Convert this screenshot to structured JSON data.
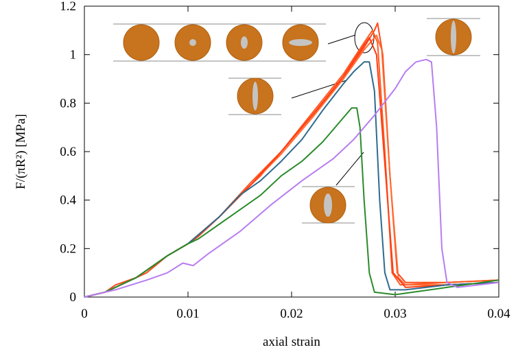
{
  "chart_data": {
    "type": "line",
    "xlabel": "axial strain",
    "ylabel": "F/(πR²) [MPa]",
    "xlim": [
      0,
      0.04
    ],
    "ylim": [
      0,
      1.2
    ],
    "xticks": [
      0,
      0.01,
      0.02,
      0.03,
      0.04
    ],
    "yticks": [
      0,
      0.2,
      0.4,
      0.6,
      0.8,
      1,
      1.2
    ],
    "series": [
      {
        "color": "#ff4a1a",
        "x": [
          0,
          0.002,
          0.003,
          0.005,
          0.006,
          0.008,
          0.01,
          0.011,
          0.013,
          0.015,
          0.017,
          0.019,
          0.021,
          0.023,
          0.025,
          0.026,
          0.027,
          0.028,
          0.0283,
          0.0288,
          0.0295,
          0.0302,
          0.031,
          0.035,
          0.04
        ],
        "values": [
          0,
          0.02,
          0.05,
          0.08,
          0.1,
          0.17,
          0.22,
          0.25,
          0.33,
          0.42,
          0.5,
          0.6,
          0.7,
          0.8,
          0.9,
          0.97,
          1.03,
          1.1,
          1.13,
          1.0,
          0.5,
          0.1,
          0.06,
          0.06,
          0.07
        ]
      },
      {
        "color": "#ff5a20",
        "x": [
          0,
          0.002,
          0.005,
          0.008,
          0.01,
          0.013,
          0.016,
          0.019,
          0.022,
          0.025,
          0.027,
          0.0278,
          0.0283,
          0.029,
          0.0297,
          0.0305,
          0.035,
          0.04
        ],
        "values": [
          0,
          0.02,
          0.08,
          0.17,
          0.22,
          0.33,
          0.47,
          0.6,
          0.76,
          0.92,
          1.05,
          1.1,
          1.05,
          0.6,
          0.1,
          0.05,
          0.06,
          0.07
        ]
      },
      {
        "color": "#ff6a30",
        "x": [
          0,
          0.002,
          0.005,
          0.008,
          0.01,
          0.013,
          0.016,
          0.019,
          0.022,
          0.025,
          0.027,
          0.0282,
          0.0287,
          0.0295,
          0.0303,
          0.031,
          0.035,
          0.04
        ],
        "values": [
          0,
          0.02,
          0.08,
          0.17,
          0.22,
          0.33,
          0.46,
          0.59,
          0.74,
          0.9,
          1.02,
          1.08,
          1.02,
          0.5,
          0.08,
          0.05,
          0.05,
          0.06
        ]
      },
      {
        "color": "#ff3c14",
        "x": [
          0,
          0.002,
          0.005,
          0.008,
          0.01,
          0.013,
          0.016,
          0.019,
          0.022,
          0.025,
          0.027,
          0.0275,
          0.0282,
          0.029,
          0.0298,
          0.031,
          0.035,
          0.04
        ],
        "values": [
          0,
          0.02,
          0.08,
          0.17,
          0.22,
          0.33,
          0.46,
          0.6,
          0.75,
          0.91,
          1.04,
          1.07,
          1.0,
          0.55,
          0.1,
          0.04,
          0.05,
          0.06
        ]
      },
      {
        "color": "#2e6a8e",
        "x": [
          0,
          0.002,
          0.005,
          0.008,
          0.01,
          0.013,
          0.015,
          0.017,
          0.019,
          0.021,
          0.023,
          0.025,
          0.026,
          0.027,
          0.0275,
          0.028,
          0.0285,
          0.029,
          0.0295,
          0.031,
          0.035,
          0.04
        ],
        "values": [
          0,
          0.02,
          0.08,
          0.17,
          0.22,
          0.33,
          0.42,
          0.48,
          0.56,
          0.65,
          0.77,
          0.88,
          0.93,
          0.97,
          0.97,
          0.85,
          0.4,
          0.1,
          0.03,
          0.03,
          0.05,
          0.06
        ]
      },
      {
        "color": "#2a8a2a",
        "x": [
          0,
          0.002,
          0.005,
          0.008,
          0.01,
          0.011,
          0.013,
          0.015,
          0.017,
          0.019,
          0.021,
          0.023,
          0.025,
          0.0258,
          0.0263,
          0.0266,
          0.027,
          0.0275,
          0.028,
          0.03,
          0.035,
          0.04
        ],
        "values": [
          0,
          0.02,
          0.08,
          0.17,
          0.22,
          0.24,
          0.3,
          0.36,
          0.42,
          0.5,
          0.56,
          0.64,
          0.74,
          0.78,
          0.78,
          0.7,
          0.4,
          0.1,
          0.02,
          0.01,
          0.04,
          0.07
        ]
      },
      {
        "color": "#b77cf0",
        "x": [
          0,
          0.003,
          0.006,
          0.008,
          0.0095,
          0.0105,
          0.012,
          0.015,
          0.018,
          0.021,
          0.024,
          0.026,
          0.028,
          0.03,
          0.031,
          0.032,
          0.033,
          0.0335,
          0.034,
          0.0345,
          0.035,
          0.036,
          0.04
        ],
        "values": [
          0,
          0.03,
          0.07,
          0.1,
          0.14,
          0.13,
          0.18,
          0.27,
          0.38,
          0.48,
          0.57,
          0.65,
          0.75,
          0.86,
          0.93,
          0.97,
          0.98,
          0.97,
          0.7,
          0.2,
          0.06,
          0.04,
          0.06
        ]
      }
    ]
  }
}
